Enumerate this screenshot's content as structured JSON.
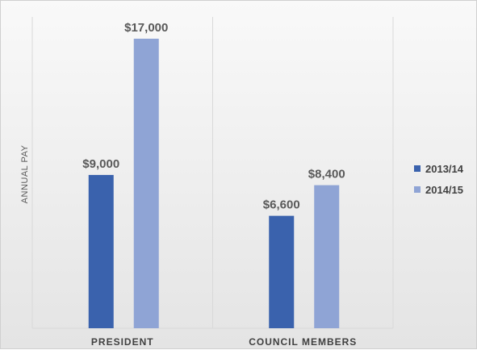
{
  "chart_data": {
    "type": "bar",
    "categories": [
      "PRESIDENT",
      "COUNCIL MEMBERS"
    ],
    "series": [
      {
        "name": "2013/14",
        "values": [
          9000,
          6600
        ],
        "labels": [
          "$9,000",
          "$6,600"
        ],
        "color": "#3a62ad"
      },
      {
        "name": "2014/15",
        "values": [
          17000,
          8400
        ],
        "labels": [
          "$17,000",
          "$8,400"
        ],
        "color": "#8fa4d5"
      }
    ],
    "title": "",
    "xlabel": "",
    "ylabel": "ANNUAL PAY",
    "ylim": [
      0,
      17000
    ],
    "grid": "vertical category separators",
    "legend": "right"
  }
}
